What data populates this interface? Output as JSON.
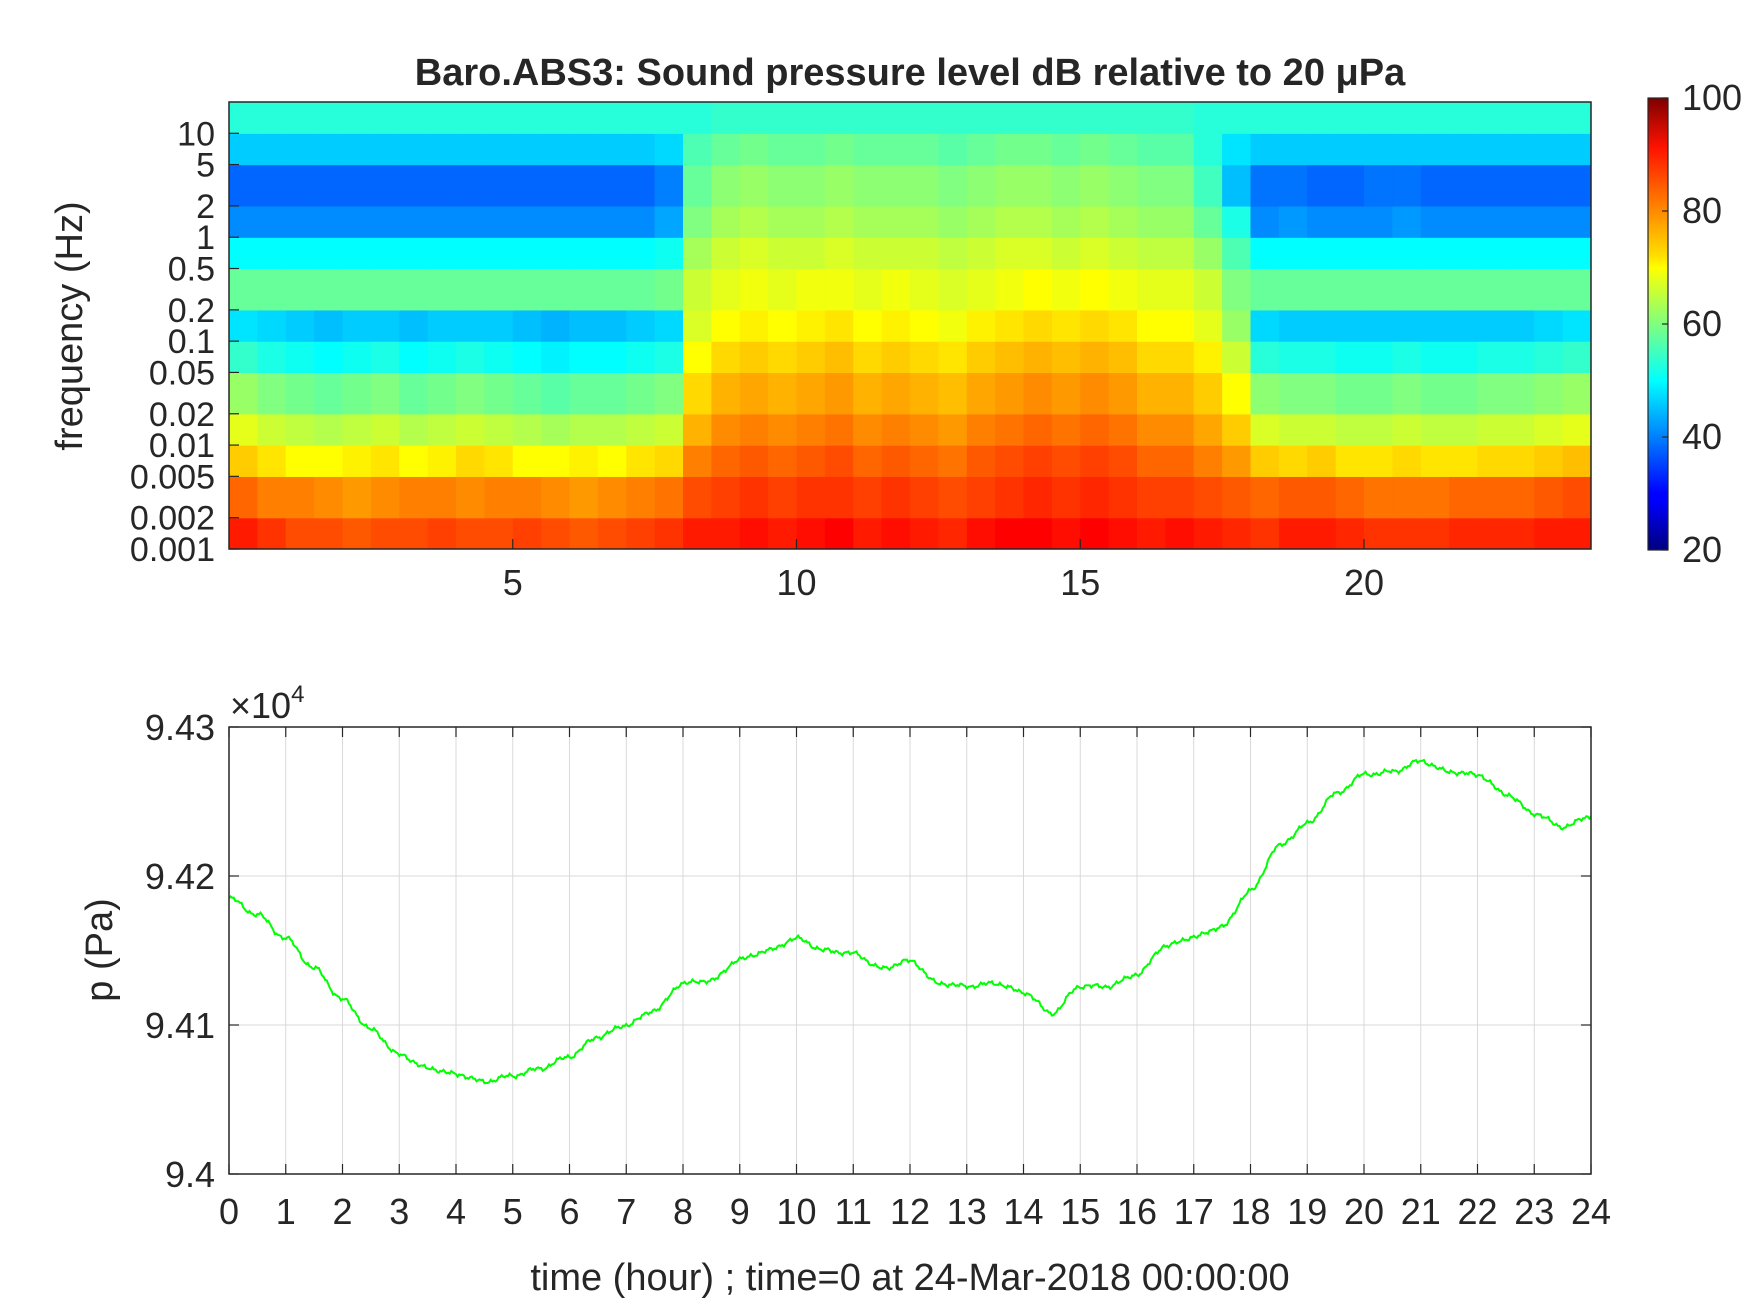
{
  "chart_data": [
    {
      "type": "heatmap",
      "title": "Baro.ABS3: Sound pressure level dB relative to 20 μPa",
      "xlabel": "",
      "ylabel": "frequency (Hz)",
      "xlim": [
        0,
        24
      ],
      "x_ticks": [
        "5",
        "10",
        "15",
        "20"
      ],
      "x_tick_values": [
        5,
        10,
        15,
        20
      ],
      "y_scale": "log",
      "ylim": [
        0.001,
        20
      ],
      "y_ticks": [
        "10",
        "5",
        "2",
        "1",
        "0.5",
        "0.2",
        "0.1",
        "0.05",
        "0.02",
        "0.01",
        "0.005",
        "0.002",
        "0.001"
      ],
      "y_tick_values": [
        10,
        5,
        2,
        1,
        0.5,
        0.2,
        0.1,
        0.05,
        0.02,
        0.01,
        0.005,
        0.002,
        0.001
      ],
      "colormap": "jet",
      "colorbar": {
        "range": [
          20,
          100
        ],
        "ticks": [
          "100",
          "80",
          "60",
          "40",
          "20"
        ],
        "tick_values": [
          100,
          80,
          60,
          40,
          20
        ]
      },
      "hours": [
        0.25,
        0.75,
        1.25,
        1.75,
        2.25,
        2.75,
        3.25,
        3.75,
        4.25,
        4.75,
        5.25,
        5.75,
        6.25,
        6.75,
        7.25,
        7.75,
        8.25,
        8.75,
        9.25,
        9.75,
        10.25,
        10.75,
        11.25,
        11.75,
        12.25,
        12.75,
        13.25,
        13.75,
        14.25,
        14.75,
        15.25,
        15.75,
        16.25,
        16.75,
        17.25,
        17.75,
        18.25,
        18.75,
        19.25,
        19.75,
        20.25,
        20.75,
        21.25,
        21.75,
        22.25,
        22.75,
        23.25,
        23.75
      ],
      "freq_bands_hz": [
        0.001,
        0.002,
        0.005,
        0.01,
        0.02,
        0.05,
        0.1,
        0.2,
        0.5,
        1,
        2,
        5,
        10,
        20
      ],
      "level_db_by_band": [
        [
          88,
          86,
          84,
          84,
          83,
          84,
          84,
          85,
          84,
          84,
          85,
          84,
          83,
          84,
          85,
          86,
          88,
          88,
          89,
          88,
          89,
          90,
          88,
          89,
          88,
          87,
          89,
          90,
          90,
          89,
          90,
          89,
          88,
          89,
          88,
          87,
          86,
          88,
          88,
          87,
          86,
          86,
          86,
          87,
          87,
          87,
          88,
          88
        ],
        [
          82,
          80,
          80,
          79,
          78,
          79,
          80,
          80,
          79,
          80,
          80,
          79,
          78,
          79,
          80,
          81,
          84,
          85,
          86,
          85,
          86,
          86,
          85,
          86,
          85,
          84,
          85,
          86,
          87,
          86,
          87,
          86,
          85,
          85,
          84,
          83,
          82,
          83,
          83,
          82,
          81,
          81,
          81,
          82,
          82,
          82,
          83,
          84
        ],
        [
          74,
          72,
          70,
          70,
          71,
          72,
          70,
          71,
          73,
          72,
          70,
          70,
          71,
          70,
          72,
          73,
          80,
          82,
          83,
          82,
          83,
          84,
          82,
          83,
          82,
          81,
          83,
          84,
          85,
          84,
          85,
          84,
          82,
          82,
          80,
          78,
          74,
          73,
          74,
          72,
          72,
          73,
          72,
          72,
          73,
          73,
          74,
          75
        ],
        [
          68,
          66,
          65,
          64,
          65,
          66,
          64,
          65,
          66,
          65,
          64,
          63,
          64,
          64,
          65,
          66,
          76,
          79,
          80,
          79,
          80,
          81,
          79,
          80,
          79,
          78,
          80,
          81,
          82,
          81,
          82,
          81,
          79,
          79,
          77,
          74,
          67,
          66,
          66,
          65,
          65,
          66,
          65,
          65,
          66,
          66,
          67,
          68
        ],
        [
          62,
          60,
          59,
          58,
          59,
          60,
          58,
          59,
          60,
          59,
          58,
          57,
          58,
          58,
          59,
          60,
          73,
          76,
          77,
          76,
          77,
          78,
          76,
          77,
          76,
          75,
          77,
          78,
          79,
          78,
          79,
          78,
          76,
          76,
          74,
          70,
          61,
          60,
          60,
          59,
          59,
          60,
          59,
          59,
          60,
          60,
          61,
          62
        ],
        [
          54,
          52,
          51,
          50,
          51,
          52,
          50,
          51,
          52,
          51,
          50,
          49,
          50,
          50,
          51,
          52,
          70,
          73,
          74,
          73,
          74,
          75,
          73,
          74,
          73,
          72,
          74,
          75,
          76,
          75,
          76,
          75,
          73,
          73,
          71,
          66,
          53,
          52,
          52,
          51,
          51,
          52,
          51,
          51,
          52,
          52,
          53,
          54
        ],
        [
          48,
          47,
          46,
          45,
          46,
          46,
          45,
          46,
          46,
          46,
          45,
          44,
          45,
          45,
          46,
          47,
          67,
          70,
          71,
          70,
          71,
          72,
          70,
          71,
          70,
          69,
          71,
          72,
          73,
          72,
          73,
          72,
          70,
          70,
          68,
          62,
          47,
          46,
          46,
          46,
          46,
          46,
          46,
          46,
          46,
          46,
          47,
          48
        ],
        [
          58,
          58,
          58,
          58,
          58,
          58,
          58,
          58,
          58,
          58,
          58,
          58,
          58,
          58,
          58,
          59,
          66,
          68,
          69,
          68,
          69,
          69,
          68,
          69,
          68,
          67,
          68,
          69,
          70,
          69,
          70,
          69,
          68,
          68,
          66,
          60,
          58,
          58,
          58,
          58,
          58,
          58,
          58,
          58,
          58,
          58,
          58,
          58
        ],
        [
          50,
          50,
          50,
          50,
          50,
          50,
          50,
          50,
          50,
          50,
          50,
          50,
          50,
          50,
          50,
          51,
          63,
          66,
          67,
          66,
          66,
          67,
          66,
          66,
          66,
          65,
          66,
          67,
          67,
          66,
          67,
          66,
          65,
          65,
          62,
          56,
          50,
          50,
          50,
          50,
          50,
          50,
          50,
          50,
          50,
          50,
          50,
          50
        ],
        [
          41,
          41,
          41,
          41,
          41,
          41,
          41,
          41,
          41,
          41,
          41,
          41,
          41,
          41,
          41,
          43,
          60,
          63,
          64,
          63,
          63,
          64,
          63,
          63,
          63,
          62,
          63,
          64,
          64,
          63,
          64,
          63,
          62,
          62,
          58,
          52,
          41,
          42,
          41,
          41,
          41,
          42,
          41,
          41,
          41,
          41,
          41,
          41
        ],
        [
          38,
          38,
          38,
          38,
          38,
          38,
          38,
          38,
          38,
          38,
          38,
          38,
          38,
          38,
          38,
          40,
          58,
          61,
          62,
          61,
          61,
          62,
          61,
          61,
          61,
          60,
          61,
          62,
          62,
          61,
          62,
          61,
          60,
          60,
          55,
          45,
          39,
          39,
          38,
          38,
          39,
          39,
          38,
          38,
          38,
          38,
          38,
          38
        ],
        [
          46,
          46,
          46,
          46,
          46,
          46,
          46,
          46,
          46,
          46,
          46,
          46,
          46,
          46,
          46,
          47,
          56,
          58,
          59,
          58,
          58,
          59,
          58,
          58,
          58,
          57,
          58,
          59,
          59,
          58,
          59,
          58,
          57,
          57,
          53,
          48,
          46,
          46,
          46,
          46,
          46,
          46,
          46,
          46,
          46,
          46,
          46,
          46
        ],
        [
          53,
          53,
          53,
          53,
          53,
          53,
          53,
          53,
          53,
          53,
          53,
          53,
          53,
          53,
          53,
          53,
          53,
          54,
          54,
          54,
          54,
          54,
          54,
          54,
          54,
          54,
          54,
          54,
          54,
          54,
          54,
          54,
          54,
          54,
          53,
          53,
          53,
          53,
          53,
          53,
          53,
          53,
          53,
          53,
          53,
          53,
          53,
          53
        ]
      ]
    },
    {
      "type": "line",
      "title": "",
      "xlabel": "time (hour) ; time=0 at 24-Mar-2018 00:00:00",
      "ylabel": "p (Pa)",
      "xlim": [
        0,
        24
      ],
      "ylim": [
        94000,
        94300
      ],
      "x_ticks": [
        "0",
        "1",
        "2",
        "3",
        "4",
        "5",
        "6",
        "7",
        "8",
        "9",
        "10",
        "11",
        "12",
        "13",
        "14",
        "15",
        "16",
        "17",
        "18",
        "19",
        "20",
        "21",
        "22",
        "23",
        "24"
      ],
      "x_tick_values": [
        0,
        1,
        2,
        3,
        4,
        5,
        6,
        7,
        8,
        9,
        10,
        11,
        12,
        13,
        14,
        15,
        16,
        17,
        18,
        19,
        20,
        21,
        22,
        23,
        24
      ],
      "y_ticks": [
        "9.4",
        "9.41",
        "9.42",
        "9.43"
      ],
      "y_tick_values": [
        94000,
        94100,
        94200,
        94300
      ],
      "y_exponent_label": "×10",
      "y_exponent_power": "4",
      "grid": true,
      "series": [
        {
          "color": "#00ff00",
          "x": [
            0,
            0.5,
            1,
            1.5,
            2,
            2.5,
            3,
            3.5,
            4,
            4.5,
            5,
            5.5,
            6,
            6.5,
            7,
            7.5,
            8,
            8.5,
            9,
            9.5,
            10,
            10.5,
            11,
            11.5,
            12,
            12.5,
            13,
            13.5,
            14,
            14.5,
            15,
            15.5,
            16,
            16.5,
            17,
            17.5,
            18,
            18.5,
            19,
            19.5,
            20,
            20.5,
            21,
            21.5,
            22,
            22.5,
            23,
            23.5,
            24
          ],
          "y": [
            94185,
            94174,
            94158,
            94138,
            94117,
            94097,
            94080,
            94071,
            94067,
            94062,
            94066,
            94071,
            94079,
            94092,
            94100,
            94110,
            94128,
            94130,
            94144,
            94150,
            94158,
            94150,
            94148,
            94138,
            94143,
            94128,
            94126,
            94128,
            94122,
            94108,
            94126,
            94126,
            94134,
            94153,
            94159,
            94166,
            94190,
            94220,
            94235,
            94255,
            94268,
            94270,
            94277,
            94270,
            94268,
            94255,
            94242,
            94233,
            94240
          ]
        }
      ]
    }
  ]
}
